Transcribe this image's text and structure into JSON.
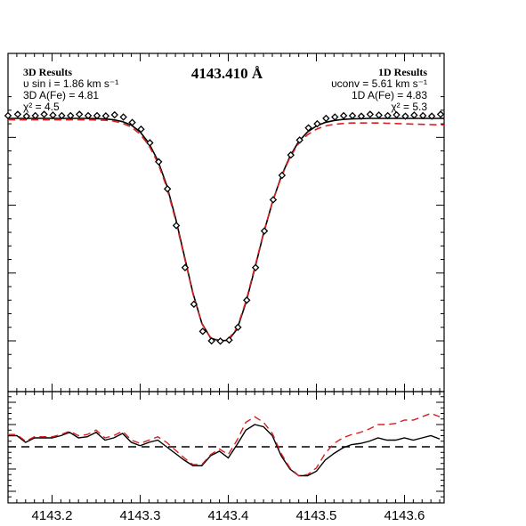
{
  "chart_data": [
    {
      "type": "line",
      "title": "4143.410 Å",
      "annotations_left": {
        "heading": "3D Results",
        "vsini": "υ sin i = 1.86 km s⁻¹",
        "abundance": "3D A(Fe) = 4.81",
        "chi2": "χ² = 4.5"
      },
      "annotations_right": {
        "heading": "1D Results",
        "vconv": "υconv = 5.61 km s⁻¹",
        "abundance": "1D A(Fe) = 4.83",
        "chi2": "χ² = 5.3"
      },
      "xlim": [
        4143.15,
        4143.645
      ],
      "ylim": [
        0.0,
        1.0
      ],
      "observed_marker": "diamond",
      "observed": {
        "x": [
          4143.15,
          4143.161,
          4143.171,
          4143.181,
          4143.191,
          4143.201,
          4143.211,
          4143.221,
          4143.231,
          4143.241,
          4143.251,
          4143.261,
          4143.271,
          4143.281,
          4143.291,
          4143.301,
          4143.311,
          4143.321,
          4143.331,
          4143.341,
          4143.351,
          4143.361,
          4143.371,
          4143.381,
          4143.391,
          4143.401,
          4143.411,
          4143.421,
          4143.431,
          4143.441,
          4143.451,
          4143.461,
          4143.471,
          4143.481,
          4143.491,
          4143.501,
          4143.511,
          4143.521,
          4143.531,
          4143.541,
          4143.551,
          4143.561,
          4143.571,
          4143.581,
          4143.591,
          4143.601,
          4143.611,
          4143.621,
          4143.631,
          4143.641
        ],
        "y": [
          0.98,
          0.985,
          0.978,
          0.98,
          0.985,
          0.982,
          0.98,
          0.98,
          0.985,
          0.98,
          0.98,
          0.979,
          0.983,
          0.975,
          0.955,
          0.93,
          0.88,
          0.81,
          0.71,
          0.575,
          0.42,
          0.285,
          0.185,
          0.15,
          0.149,
          0.153,
          0.2,
          0.3,
          0.42,
          0.555,
          0.67,
          0.76,
          0.835,
          0.89,
          0.935,
          0.95,
          0.97,
          0.975,
          0.98,
          0.98,
          0.978,
          0.985,
          0.982,
          0.98,
          0.983,
          0.978,
          0.982,
          0.98,
          0.978,
          0.985
        ]
      },
      "series": [
        {
          "name": "3D",
          "color": "#000000",
          "style": "solid",
          "x": [
            4143.15,
            4143.16,
            4143.17,
            4143.18,
            4143.19,
            4143.2,
            4143.21,
            4143.22,
            4143.23,
            4143.24,
            4143.25,
            4143.26,
            4143.27,
            4143.28,
            4143.29,
            4143.3,
            4143.31,
            4143.32,
            4143.33,
            4143.34,
            4143.35,
            4143.36,
            4143.37,
            4143.38,
            4143.39,
            4143.4,
            4143.41,
            4143.42,
            4143.43,
            4143.44,
            4143.45,
            4143.46,
            4143.47,
            4143.48,
            4143.49,
            4143.5,
            4143.51,
            4143.52,
            4143.53,
            4143.54,
            4143.55,
            4143.56,
            4143.57,
            4143.58,
            4143.59,
            4143.6,
            4143.61,
            4143.62,
            4143.63,
            4143.645
          ],
          "y": [
            0.97,
            0.97,
            0.97,
            0.97,
            0.97,
            0.97,
            0.97,
            0.97,
            0.97,
            0.97,
            0.969,
            0.968,
            0.965,
            0.958,
            0.945,
            0.92,
            0.878,
            0.815,
            0.725,
            0.605,
            0.465,
            0.325,
            0.215,
            0.16,
            0.15,
            0.152,
            0.193,
            0.29,
            0.415,
            0.545,
            0.66,
            0.755,
            0.83,
            0.885,
            0.92,
            0.942,
            0.955,
            0.962,
            0.966,
            0.968,
            0.969,
            0.97,
            0.97,
            0.97,
            0.97,
            0.97,
            0.97,
            0.97,
            0.97,
            0.97
          ]
        },
        {
          "name": "1D",
          "color": "#d62020",
          "style": "dashed",
          "x": [
            4143.15,
            4143.16,
            4143.17,
            4143.18,
            4143.19,
            4143.2,
            4143.21,
            4143.22,
            4143.23,
            4143.24,
            4143.25,
            4143.26,
            4143.27,
            4143.28,
            4143.29,
            4143.3,
            4143.31,
            4143.32,
            4143.33,
            4143.34,
            4143.35,
            4143.36,
            4143.37,
            4143.38,
            4143.39,
            4143.4,
            4143.41,
            4143.42,
            4143.43,
            4143.44,
            4143.45,
            4143.46,
            4143.47,
            4143.48,
            4143.49,
            4143.5,
            4143.51,
            4143.52,
            4143.53,
            4143.54,
            4143.55,
            4143.56,
            4143.57,
            4143.58,
            4143.59,
            4143.6,
            4143.61,
            4143.62,
            4143.63,
            4143.645
          ],
          "y": [
            0.965,
            0.965,
            0.965,
            0.965,
            0.965,
            0.965,
            0.965,
            0.965,
            0.965,
            0.965,
            0.964,
            0.963,
            0.96,
            0.952,
            0.938,
            0.912,
            0.87,
            0.807,
            0.718,
            0.598,
            0.46,
            0.322,
            0.213,
            0.162,
            0.152,
            0.156,
            0.198,
            0.295,
            0.42,
            0.548,
            0.66,
            0.752,
            0.826,
            0.878,
            0.91,
            0.93,
            0.942,
            0.948,
            0.951,
            0.953,
            0.953,
            0.953,
            0.953,
            0.952,
            0.951,
            0.95,
            0.949,
            0.948,
            0.947,
            0.946
          ]
        }
      ]
    },
    {
      "type": "line",
      "xlim": [
        4143.15,
        4143.645
      ],
      "xticks": [
        "4143.2",
        "4143.3",
        "4143.4",
        "4143.5",
        "4143.6"
      ],
      "xtick_values": [
        4143.2,
        4143.3,
        4143.4,
        4143.5,
        4143.6
      ],
      "ylim": [
        -0.05,
        0.05
      ],
      "reference_line": {
        "y": 0,
        "style": "dashed",
        "color": "#000000"
      },
      "series": [
        {
          "name": "3D",
          "color": "#000000",
          "style": "solid",
          "x": [
            4143.15,
            4143.16,
            4143.17,
            4143.18,
            4143.19,
            4143.2,
            4143.21,
            4143.22,
            4143.23,
            4143.24,
            4143.25,
            4143.26,
            4143.27,
            4143.28,
            4143.29,
            4143.3,
            4143.31,
            4143.32,
            4143.33,
            4143.34,
            4143.35,
            4143.36,
            4143.37,
            4143.38,
            4143.39,
            4143.4,
            4143.41,
            4143.42,
            4143.43,
            4143.44,
            4143.45,
            4143.46,
            4143.47,
            4143.48,
            4143.49,
            4143.5,
            4143.51,
            4143.52,
            4143.53,
            4143.54,
            4143.55,
            4143.56,
            4143.57,
            4143.58,
            4143.59,
            4143.6,
            4143.61,
            4143.62,
            4143.63,
            4143.64
          ],
          "y": [
            0.01,
            0.01,
            0.004,
            0.008,
            0.008,
            0.008,
            0.01,
            0.013,
            0.008,
            0.009,
            0.013,
            0.006,
            0.008,
            0.012,
            0.004,
            0.001,
            0.004,
            0.006,
            0.0,
            -0.006,
            -0.012,
            -0.017,
            -0.017,
            -0.008,
            -0.004,
            -0.01,
            0.002,
            0.015,
            0.02,
            0.018,
            0.01,
            -0.008,
            -0.02,
            -0.026,
            -0.026,
            -0.022,
            -0.012,
            -0.006,
            -0.001,
            0.002,
            0.003,
            0.005,
            0.008,
            0.006,
            0.006,
            0.008,
            0.006,
            0.008,
            0.01,
            0.007
          ]
        },
        {
          "name": "1D",
          "color": "#d62020",
          "style": "dashed",
          "x": [
            4143.15,
            4143.16,
            4143.17,
            4143.18,
            4143.19,
            4143.2,
            4143.21,
            4143.22,
            4143.23,
            4143.24,
            4143.25,
            4143.26,
            4143.27,
            4143.28,
            4143.29,
            4143.3,
            4143.31,
            4143.32,
            4143.33,
            4143.34,
            4143.35,
            4143.36,
            4143.37,
            4143.38,
            4143.39,
            4143.4,
            4143.41,
            4143.42,
            4143.43,
            4143.44,
            4143.45,
            4143.46,
            4143.47,
            4143.48,
            4143.49,
            4143.5,
            4143.51,
            4143.52,
            4143.53,
            4143.54,
            4143.55,
            4143.56,
            4143.57,
            4143.58,
            4143.59,
            4143.6,
            4143.61,
            4143.62,
            4143.63,
            4143.64
          ],
          "y": [
            0.011,
            0.011,
            0.005,
            0.009,
            0.009,
            0.009,
            0.011,
            0.014,
            0.01,
            0.011,
            0.015,
            0.008,
            0.01,
            0.014,
            0.006,
            0.003,
            0.006,
            0.009,
            0.004,
            -0.003,
            -0.01,
            -0.016,
            -0.016,
            -0.007,
            -0.002,
            -0.007,
            0.006,
            0.022,
            0.027,
            0.022,
            0.012,
            -0.006,
            -0.019,
            -0.026,
            -0.025,
            -0.019,
            -0.006,
            0.003,
            0.008,
            0.011,
            0.013,
            0.016,
            0.02,
            0.02,
            0.021,
            0.024,
            0.024,
            0.027,
            0.03,
            0.027
          ]
        }
      ]
    }
  ]
}
